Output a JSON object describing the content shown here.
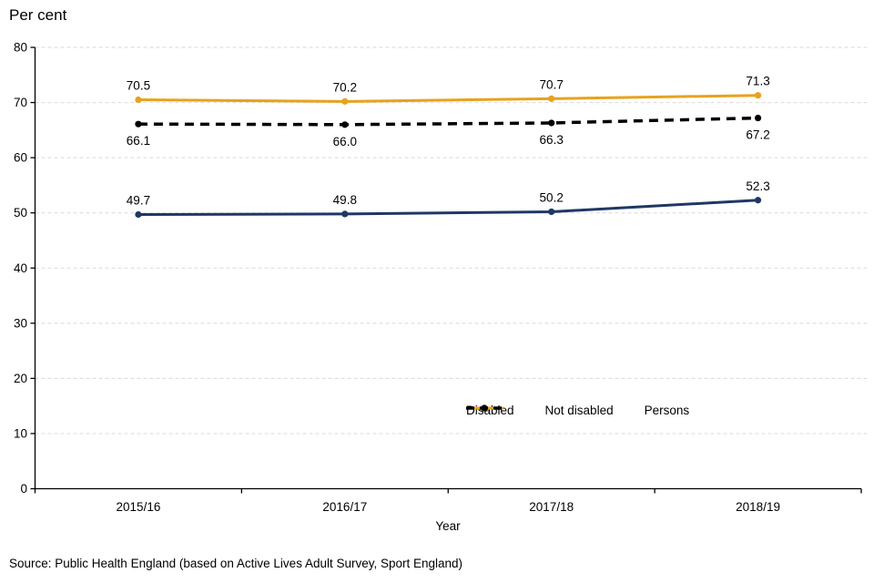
{
  "chart_data": {
    "type": "line",
    "title": "Per cent",
    "xlabel": "Year",
    "ylabel": "Per cent",
    "categories": [
      "2015/16",
      "2016/17",
      "2017/18",
      "2018/19"
    ],
    "series": [
      {
        "name": "Disabled",
        "color": "#1F3864",
        "dash": null,
        "marker": "circle",
        "label_position": "above",
        "values": [
          49.7,
          49.8,
          50.2,
          52.3
        ]
      },
      {
        "name": "Not disabled",
        "color": "#E8A21D",
        "dash": null,
        "marker": "circle",
        "label_position": "above",
        "values": [
          70.5,
          70.2,
          70.7,
          71.3
        ]
      },
      {
        "name": "Persons",
        "color": "#000000",
        "dash": [
          10,
          7
        ],
        "marker": "circle",
        "label_position": "below",
        "values": [
          66.1,
          66.0,
          66.3,
          67.2
        ]
      }
    ],
    "ylim": [
      0,
      80
    ],
    "ytick_step": 10,
    "grid": true,
    "gridline_color": "#D9D9D9",
    "axis_color": "#000000",
    "legend_position": "inside-bottom-right"
  },
  "footer": {
    "source": "Source: Public Health England (based on Active Lives Adult Survey, Sport England)"
  }
}
